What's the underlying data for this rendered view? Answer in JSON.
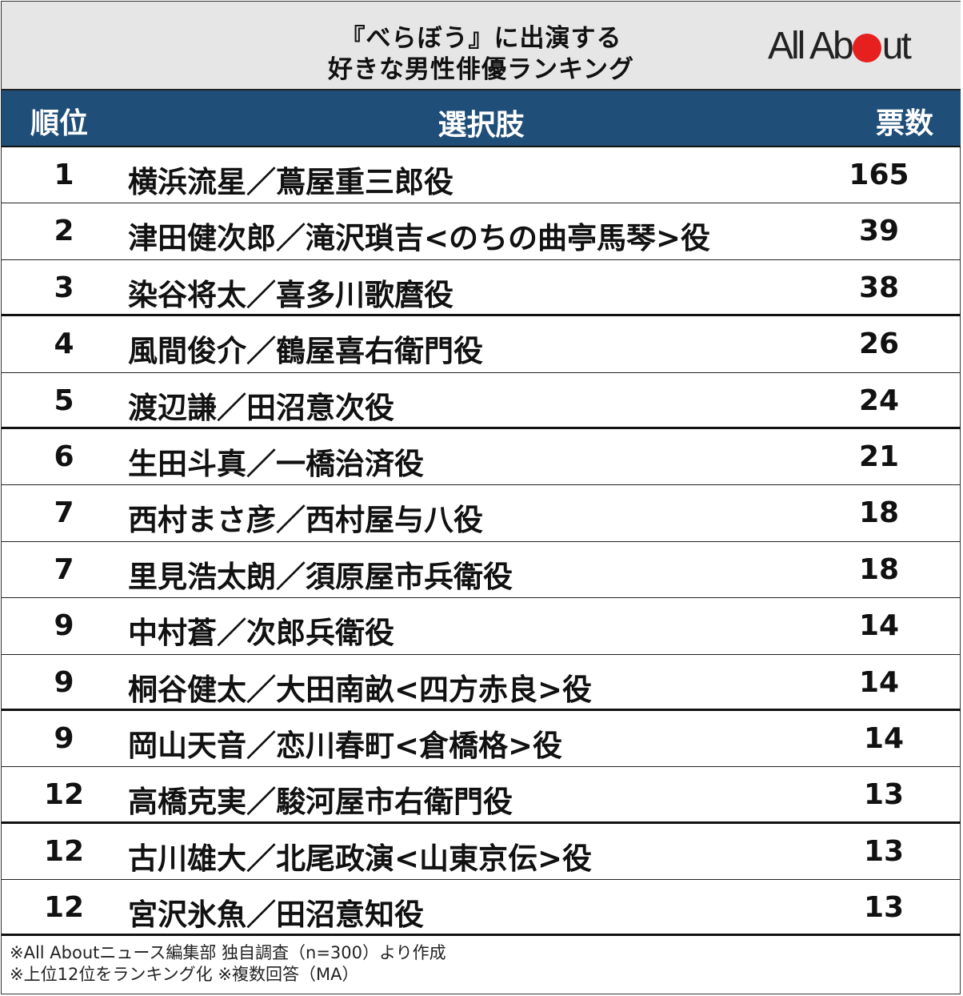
{
  "title": {
    "line1": "『べらぼう』に出演する",
    "line2": "好きな男性俳優ランキング"
  },
  "logo": {
    "text_before": "All Ab",
    "text_after": "ut",
    "dot_color": "#e5201f"
  },
  "table": {
    "headers": {
      "rank": "順位",
      "choice": "選択肢",
      "votes": "票数"
    },
    "header_color": "#1f4e79",
    "rows": [
      {
        "rank": "1",
        "choice": "横浜流星／蔦屋重三郎役",
        "votes": "165"
      },
      {
        "rank": "2",
        "choice": "津田健次郎／滝沢瑣吉<のちの曲亭馬琴>役",
        "votes": "39"
      },
      {
        "rank": "3",
        "choice": "染谷将太／喜多川歌麿役",
        "votes": "38"
      },
      {
        "rank": "4",
        "choice": "風間俊介／鶴屋喜右衛門役",
        "votes": "26"
      },
      {
        "rank": "5",
        "choice": "渡辺謙／田沼意次役",
        "votes": "24"
      },
      {
        "rank": "6",
        "choice": "生田斗真／一橋治済役",
        "votes": "21"
      },
      {
        "rank": "7",
        "choice": "西村まさ彦／西村屋与八役",
        "votes": "18"
      },
      {
        "rank": "7",
        "choice": "里見浩太朗／須原屋市兵衛役",
        "votes": "18"
      },
      {
        "rank": "9",
        "choice": "中村蒼／次郎兵衛役",
        "votes": "14"
      },
      {
        "rank": "9",
        "choice": "桐谷健太／大田南畝<四方赤良>役",
        "votes": "14"
      },
      {
        "rank": "9",
        "choice": "岡山天音／恋川春町<倉橋格>役",
        "votes": "14"
      },
      {
        "rank": "12",
        "choice": "高橋克実／駿河屋市右衛門役",
        "votes": "13"
      },
      {
        "rank": "12",
        "choice": "古川雄大／北尾政演<山東京伝>役",
        "votes": "13"
      },
      {
        "rank": "12",
        "choice": "宮沢氷魚／田沼意知役",
        "votes": "13"
      }
    ]
  },
  "footer": {
    "note1": "※All Aboutニュース編集部 独自調査（n=300）より作成",
    "note2": "※上位12位をランキング化 ※複数回答（MA）"
  }
}
